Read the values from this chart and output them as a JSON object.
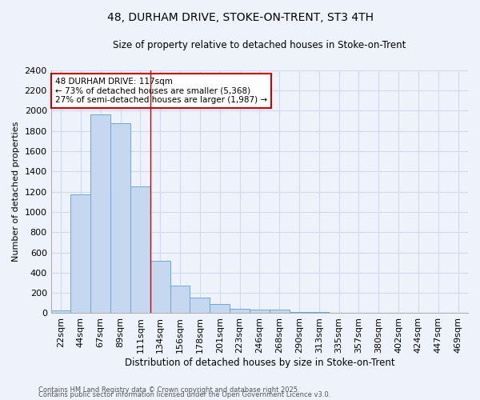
{
  "title1": "48, DURHAM DRIVE, STOKE-ON-TRENT, ST3 4TH",
  "title2": "Size of property relative to detached houses in Stoke-on-Trent",
  "xlabel": "Distribution of detached houses by size in Stoke-on-Trent",
  "ylabel": "Number of detached properties",
  "categories": [
    "22sqm",
    "44sqm",
    "67sqm",
    "89sqm",
    "111sqm",
    "134sqm",
    "156sqm",
    "178sqm",
    "201sqm",
    "223sqm",
    "246sqm",
    "268sqm",
    "290sqm",
    "313sqm",
    "335sqm",
    "357sqm",
    "380sqm",
    "402sqm",
    "424sqm",
    "447sqm",
    "469sqm"
  ],
  "values": [
    25,
    1175,
    1960,
    1875,
    1250,
    520,
    275,
    155,
    90,
    45,
    35,
    35,
    15,
    10,
    5,
    3,
    2,
    2,
    1,
    1,
    0
  ],
  "bar_color": "#c5d8f0",
  "bar_edge_color": "#6aaad4",
  "grid_color": "#d0daea",
  "background_color": "#eef2fb",
  "red_line_x": 4.5,
  "annotation_text": "48 DURHAM DRIVE: 117sqm\n← 73% of detached houses are smaller (5,368)\n27% of semi-detached houses are larger (1,987) →",
  "annotation_box_color": "#ffffff",
  "annotation_edge_color": "#cc0000",
  "ylim": [
    0,
    2400
  ],
  "yticks": [
    0,
    200,
    400,
    600,
    800,
    1000,
    1200,
    1400,
    1600,
    1800,
    2000,
    2200,
    2400
  ],
  "footnote1": "Contains HM Land Registry data © Crown copyright and database right 2025.",
  "footnote2": "Contains public sector information licensed under the Open Government Licence v3.0."
}
